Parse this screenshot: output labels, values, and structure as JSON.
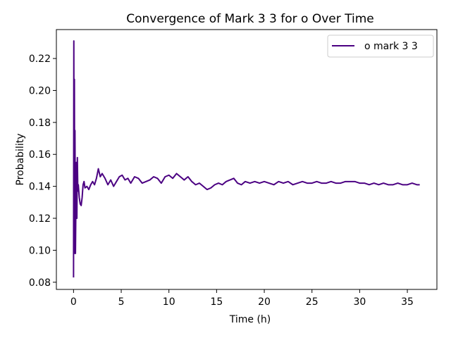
{
  "chart_data": {
    "type": "line",
    "title": "Convergence of Mark 3 3 for o Over Time",
    "xlabel": "Time (h)",
    "ylabel": "Probability",
    "xlim": [
      -1.8,
      38.1
    ],
    "ylim": [
      0.0755,
      0.2381
    ],
    "xticks": [
      0,
      5,
      10,
      15,
      20,
      25,
      30,
      35
    ],
    "yticks": [
      0.08,
      0.1,
      0.12,
      0.14,
      0.16,
      0.18,
      0.2,
      0.22
    ],
    "legend_position": "top-right",
    "grid": false,
    "series": [
      {
        "name": "o mark 3 3",
        "color": "#4b0082",
        "points": [
          [
            0.0,
            0.083
          ],
          [
            0.03,
            0.231
          ],
          [
            0.06,
            0.098
          ],
          [
            0.09,
            0.207
          ],
          [
            0.12,
            0.11
          ],
          [
            0.15,
            0.175
          ],
          [
            0.2,
            0.098
          ],
          [
            0.25,
            0.13
          ],
          [
            0.3,
            0.155
          ],
          [
            0.35,
            0.12
          ],
          [
            0.4,
            0.158
          ],
          [
            0.45,
            0.137
          ],
          [
            0.5,
            0.141
          ],
          [
            0.6,
            0.133
          ],
          [
            0.7,
            0.129
          ],
          [
            0.8,
            0.128
          ],
          [
            0.9,
            0.133
          ],
          [
            1.0,
            0.141
          ],
          [
            1.1,
            0.143
          ],
          [
            1.2,
            0.139
          ],
          [
            1.4,
            0.14
          ],
          [
            1.6,
            0.138
          ],
          [
            1.8,
            0.141
          ],
          [
            2.0,
            0.143
          ],
          [
            2.2,
            0.141
          ],
          [
            2.4,
            0.145
          ],
          [
            2.6,
            0.151
          ],
          [
            2.8,
            0.146
          ],
          [
            3.0,
            0.148
          ],
          [
            3.3,
            0.145
          ],
          [
            3.6,
            0.141
          ],
          [
            3.9,
            0.144
          ],
          [
            4.2,
            0.14
          ],
          [
            4.5,
            0.143
          ],
          [
            4.8,
            0.146
          ],
          [
            5.1,
            0.147
          ],
          [
            5.4,
            0.144
          ],
          [
            5.7,
            0.145
          ],
          [
            6.0,
            0.142
          ],
          [
            6.4,
            0.146
          ],
          [
            6.8,
            0.145
          ],
          [
            7.2,
            0.142
          ],
          [
            7.6,
            0.143
          ],
          [
            8.0,
            0.144
          ],
          [
            8.4,
            0.146
          ],
          [
            8.8,
            0.145
          ],
          [
            9.2,
            0.142
          ],
          [
            9.6,
            0.146
          ],
          [
            10.0,
            0.147
          ],
          [
            10.4,
            0.145
          ],
          [
            10.8,
            0.148
          ],
          [
            11.2,
            0.146
          ],
          [
            11.6,
            0.144
          ],
          [
            12.0,
            0.146
          ],
          [
            12.4,
            0.143
          ],
          [
            12.8,
            0.141
          ],
          [
            13.2,
            0.142
          ],
          [
            13.6,
            0.14
          ],
          [
            14.0,
            0.138
          ],
          [
            14.4,
            0.139
          ],
          [
            14.8,
            0.141
          ],
          [
            15.2,
            0.142
          ],
          [
            15.6,
            0.141
          ],
          [
            16.0,
            0.143
          ],
          [
            16.4,
            0.144
          ],
          [
            16.8,
            0.145
          ],
          [
            17.2,
            0.142
          ],
          [
            17.6,
            0.141
          ],
          [
            18.0,
            0.143
          ],
          [
            18.5,
            0.142
          ],
          [
            19.0,
            0.143
          ],
          [
            19.5,
            0.142
          ],
          [
            20.0,
            0.143
          ],
          [
            20.5,
            0.142
          ],
          [
            21.0,
            0.141
          ],
          [
            21.5,
            0.143
          ],
          [
            22.0,
            0.142
          ],
          [
            22.5,
            0.143
          ],
          [
            23.0,
            0.141
          ],
          [
            23.5,
            0.142
          ],
          [
            24.0,
            0.143
          ],
          [
            24.5,
            0.142
          ],
          [
            25.0,
            0.142
          ],
          [
            25.5,
            0.143
          ],
          [
            26.0,
            0.142
          ],
          [
            26.5,
            0.142
          ],
          [
            27.0,
            0.143
          ],
          [
            27.5,
            0.142
          ],
          [
            28.0,
            0.142
          ],
          [
            28.5,
            0.143
          ],
          [
            29.0,
            0.143
          ],
          [
            29.5,
            0.143
          ],
          [
            30.0,
            0.142
          ],
          [
            30.5,
            0.142
          ],
          [
            31.0,
            0.141
          ],
          [
            31.5,
            0.142
          ],
          [
            32.0,
            0.141
          ],
          [
            32.5,
            0.142
          ],
          [
            33.0,
            0.141
          ],
          [
            33.5,
            0.141
          ],
          [
            34.0,
            0.142
          ],
          [
            34.5,
            0.141
          ],
          [
            35.0,
            0.141
          ],
          [
            35.5,
            0.142
          ],
          [
            36.0,
            0.141
          ],
          [
            36.3,
            0.141
          ]
        ]
      }
    ]
  }
}
